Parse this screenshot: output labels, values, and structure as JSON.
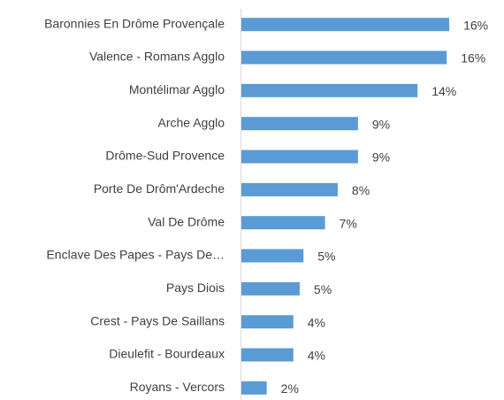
{
  "chart_data": {
    "type": "barh",
    "categories": [
      "Baronnies En Drôme Provençale",
      "Valence - Romans Agglo",
      "Montélimar Agglo",
      "Arche Agglo",
      "Drôme-Sud Provence",
      "Porte De Drôm'Ardeche",
      "Val De Drôme",
      "Enclave Des Papes - Pays De…",
      "Pays Diois",
      "Crest - Pays De Saillans",
      "Dieulefit - Bourdeaux",
      "Royans - Vercors"
    ],
    "values": [
      16.4,
      16.2,
      13.9,
      9.2,
      9.2,
      7.6,
      6.6,
      4.9,
      4.6,
      4.1,
      4.1,
      2.0
    ],
    "value_labels": [
      "16%",
      "16%",
      "14%",
      "9%",
      "9%",
      "8%",
      "7%",
      "5%",
      "5%",
      "4%",
      "4%",
      "2%"
    ],
    "color": "#5b9bd5",
    "xlim": [
      0,
      18
    ]
  }
}
